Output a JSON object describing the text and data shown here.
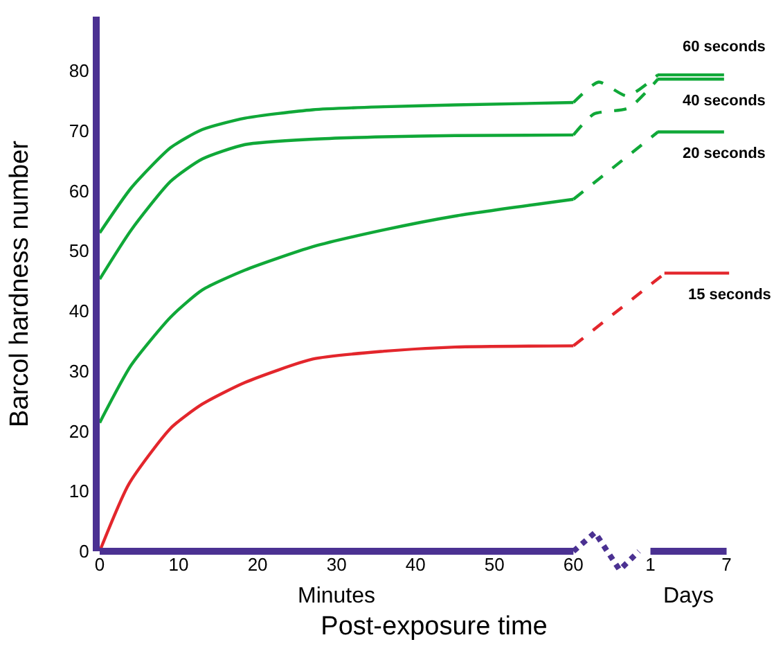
{
  "chart_data": {
    "type": "line",
    "xlabel": "Post-exposure time",
    "ylabel": "Barcol hardness number",
    "xlim": [
      0,
      84.7
    ],
    "ylim": [
      0,
      89
    ],
    "xticks": [
      0,
      10,
      20,
      30,
      40,
      50,
      60
    ],
    "x2lim": [
      -42.4,
      10.3
    ],
    "x2ticks": [
      1,
      7
    ],
    "yticks": [
      0,
      10,
      20,
      30,
      40,
      50,
      60,
      70,
      80
    ],
    "grid": false,
    "legend": false,
    "marker": "none",
    "annotations": [
      "Minutes",
      "Days"
    ],
    "series": [
      {
        "color": "#10a838",
        "line_style": "solid",
        "x": [
          0,
          4,
          9,
          13,
          18.4,
          27,
          36,
          45,
          60
        ],
        "values": [
          53,
          60.5,
          67.2,
          70.2,
          72.1,
          73.5,
          74,
          74.3,
          74.7
        ]
      },
      {
        "color": "#10a838",
        "line_style": "dashed",
        "x": [
          60,
          63.2,
          66.8,
          70.7
        ],
        "values": [
          74.7,
          78.1,
          75.8,
          79.3
        ]
      },
      {
        "name": "60 seconds",
        "color": "#10a838",
        "line_style": "solid",
        "axis": "x2",
        "x": [
          1.55,
          6.8
        ],
        "values": [
          79.3,
          79.3
        ]
      },
      {
        "color": "#10a838",
        "line_style": "solid",
        "x": [
          0,
          4,
          9,
          13,
          18.4,
          27,
          36,
          45,
          60
        ],
        "values": [
          45.3,
          53.5,
          61.6,
          65.3,
          67.7,
          68.6,
          69,
          69.2,
          69.3
        ]
      },
      {
        "color": "#10a838",
        "line_style": "dashed",
        "x": [
          60,
          62.6,
          67,
          70.7
        ],
        "values": [
          69.3,
          72.8,
          73.8,
          78.6
        ]
      },
      {
        "name": "40 seconds",
        "color": "#10a838",
        "line_style": "solid",
        "axis": "x2",
        "x": [
          1.55,
          6.8
        ],
        "values": [
          78.6,
          78.6
        ]
      },
      {
        "color": "#10a838",
        "line_style": "solid",
        "x": [
          0,
          4,
          9,
          13,
          18.4,
          27,
          36,
          45,
          60
        ],
        "values": [
          21.4,
          31,
          39,
          43.5,
          46.8,
          50.7,
          53.5,
          55.8,
          58.6
        ]
      },
      {
        "color": "#10a838",
        "line_style": "dashed",
        "x": [
          60,
          70.7
        ],
        "values": [
          58.6,
          69.8
        ]
      },
      {
        "name": "20 seconds",
        "color": "#10a838",
        "line_style": "solid",
        "axis": "x2",
        "x": [
          1.55,
          6.8
        ],
        "values": [
          69.8,
          69.8
        ]
      },
      {
        "color": "#e3262c",
        "line_style": "solid",
        "x": [
          0,
          3.7,
          9,
          13,
          18.4,
          27,
          36,
          45,
          60
        ],
        "values": [
          0,
          11.2,
          20.5,
          24.5,
          28.1,
          32,
          33.3,
          34,
          34.2
        ]
      },
      {
        "color": "#e3262c",
        "line_style": "dashed",
        "x": [
          60,
          71.6
        ],
        "values": [
          34.2,
          46.3
        ]
      },
      {
        "name": "15 seconds",
        "color": "#e3262c",
        "line_style": "solid",
        "axis": "x2",
        "x": [
          2.1,
          7.2
        ],
        "values": [
          46.3,
          46.3
        ]
      }
    ]
  }
}
